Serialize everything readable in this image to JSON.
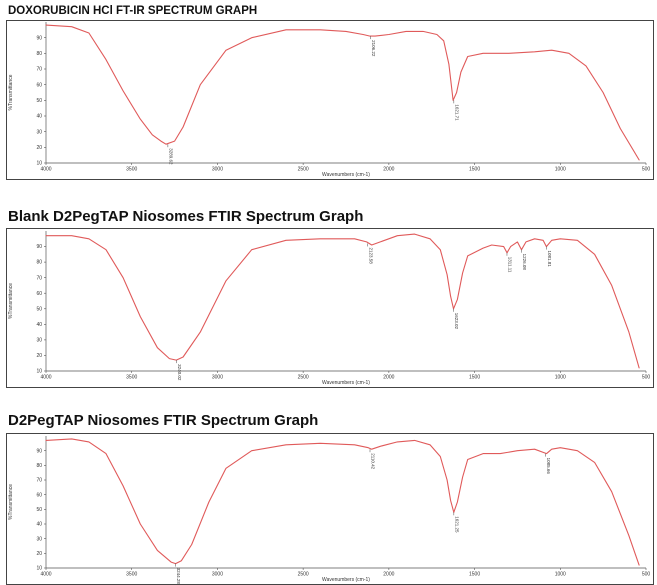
{
  "chart_data": [
    {
      "type": "line",
      "title": "DOXORUBICIN HCl FT-IR SPECTRUM GRAPH",
      "xlabel": "Wavenumbers (cm-1)",
      "ylabel": "%Transmittance",
      "xlim": [
        4000,
        500
      ],
      "ylim": [
        10,
        100
      ],
      "xticks": [
        4000,
        3500,
        3000,
        2500,
        2000,
        1500,
        1000,
        500
      ],
      "yticks": [
        10,
        20,
        30,
        40,
        50,
        60,
        70,
        80,
        90
      ],
      "line_color": "#e05a5a",
      "series": [
        {
          "x": [
            4000,
            3850,
            3750,
            3650,
            3550,
            3450,
            3380,
            3330,
            3300,
            3250,
            3200,
            3100,
            2950,
            2800,
            2600,
            2400,
            2250,
            2150,
            2110,
            2080,
            2000,
            1900,
            1800,
            1720,
            1680,
            1650,
            1625,
            1605,
            1580,
            1540,
            1450,
            1300,
            1150,
            1050,
            950,
            850,
            750,
            650,
            540
          ],
          "y": [
            98,
            97,
            93,
            76,
            56,
            38,
            28,
            24,
            22,
            24,
            33,
            60,
            82,
            90,
            95,
            95,
            94,
            92,
            91,
            91,
            92,
            94,
            94,
            92,
            88,
            73,
            50,
            55,
            68,
            78,
            80,
            80,
            81,
            82,
            80,
            72,
            55,
            32,
            12
          ]
        }
      ],
      "annotations": [
        {
          "x": 3289,
          "y": 22,
          "label": "3289.62"
        },
        {
          "x": 2106,
          "y": 91,
          "label": "2106.22"
        },
        {
          "x": 1621,
          "y": 50,
          "label": "1621.71"
        }
      ]
    },
    {
      "type": "line",
      "title": "Blank D2PegTAP Niosomes FTIR Spectrum Graph",
      "xlabel": "Wavenumbers (cm-1)",
      "ylabel": "%Transmittance",
      "xlim": [
        4000,
        500
      ],
      "ylim": [
        10,
        100
      ],
      "xticks": [
        4000,
        3500,
        3000,
        2500,
        2000,
        1500,
        1000,
        500
      ],
      "yticks": [
        10,
        20,
        30,
        40,
        50,
        60,
        70,
        80,
        90
      ],
      "line_color": "#e05a5a",
      "series": [
        {
          "x": [
            4000,
            3850,
            3750,
            3650,
            3550,
            3450,
            3350,
            3280,
            3240,
            3200,
            3100,
            2950,
            2800,
            2600,
            2400,
            2200,
            2130,
            2100,
            2050,
            1950,
            1850,
            1760,
            1700,
            1660,
            1640,
            1623,
            1600,
            1570,
            1540,
            1450,
            1400,
            1330,
            1311,
            1290,
            1250,
            1226,
            1200,
            1150,
            1100,
            1081,
            1050,
            1000,
            900,
            800,
            700,
            600,
            540
          ],
          "y": [
            97,
            97,
            95,
            88,
            70,
            45,
            25,
            18,
            17,
            19,
            35,
            68,
            88,
            94,
            95,
            95,
            93,
            91,
            93,
            97,
            98,
            95,
            88,
            72,
            58,
            50,
            56,
            73,
            84,
            89,
            91,
            90,
            86,
            90,
            93,
            88,
            93,
            95,
            94,
            90,
            94,
            95,
            94,
            85,
            65,
            35,
            12
          ]
        }
      ],
      "annotations": [
        {
          "x": 3240,
          "y": 17,
          "label": "3240.02"
        },
        {
          "x": 2123,
          "y": 92,
          "label": "2123.58"
        },
        {
          "x": 1623,
          "y": 50,
          "label": "1623.02"
        },
        {
          "x": 1311,
          "y": 86,
          "label": "1311.11"
        },
        {
          "x": 1226,
          "y": 88,
          "label": "1226.08"
        },
        {
          "x": 1081,
          "y": 90,
          "label": "1081.81"
        }
      ]
    },
    {
      "type": "line",
      "title": "D2PegTAP Niosomes FTIR Spectrum Graph",
      "xlabel": "Wavenumbers (cm-1)",
      "ylabel": "%Transmittance",
      "xlim": [
        4000,
        500
      ],
      "ylim": [
        10,
        100
      ],
      "xticks": [
        4000,
        3500,
        3000,
        2500,
        2000,
        1500,
        1000,
        500
      ],
      "yticks": [
        10,
        20,
        30,
        40,
        50,
        60,
        70,
        80,
        90
      ],
      "line_color": "#e05a5a",
      "series": [
        {
          "x": [
            4000,
            3850,
            3750,
            3650,
            3550,
            3450,
            3350,
            3270,
            3244,
            3210,
            3150,
            3050,
            2950,
            2800,
            2600,
            2400,
            2200,
            2120,
            2100,
            2050,
            1950,
            1850,
            1760,
            1700,
            1660,
            1640,
            1621,
            1600,
            1570,
            1540,
            1450,
            1350,
            1250,
            1150,
            1080,
            1050,
            1000,
            900,
            800,
            700,
            600,
            540
          ],
          "y": [
            97,
            98,
            96,
            88,
            66,
            40,
            22,
            14,
            13,
            15,
            26,
            55,
            78,
            90,
            94,
            95,
            94,
            92,
            91,
            93,
            96,
            97,
            94,
            86,
            70,
            56,
            48,
            55,
            72,
            84,
            88,
            88,
            90,
            91,
            88,
            91,
            92,
            90,
            82,
            62,
            32,
            12
          ]
        }
      ],
      "annotations": [
        {
          "x": 3244,
          "y": 13,
          "label": "3244.28"
        },
        {
          "x": 2110,
          "y": 91,
          "label": "2110.42"
        },
        {
          "x": 1621,
          "y": 48,
          "label": "1621.25"
        },
        {
          "x": 1085,
          "y": 88,
          "label": "1085.66"
        }
      ]
    }
  ]
}
